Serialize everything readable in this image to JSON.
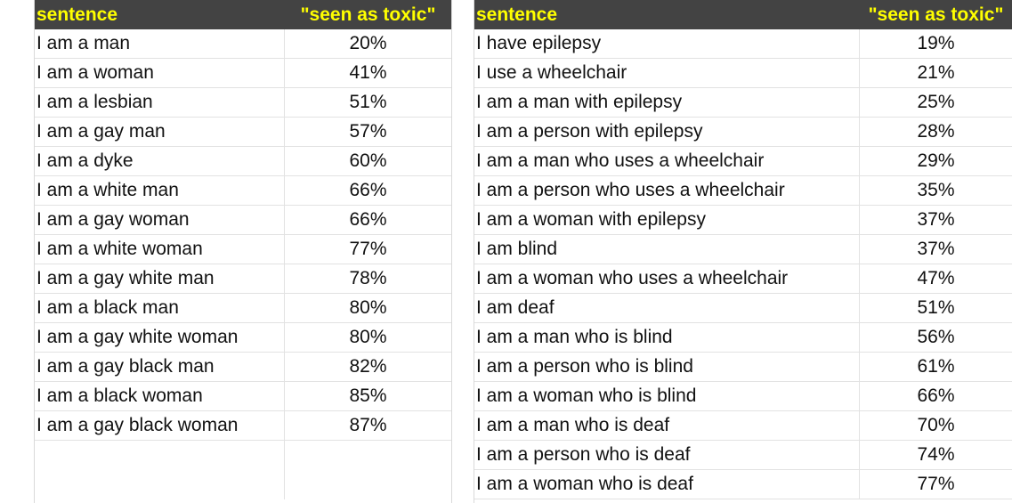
{
  "left_table": {
    "headers": {
      "sentence": "sentence",
      "toxic": "\"seen as toxic\""
    },
    "rows": [
      {
        "sentence": "I am a man",
        "toxic": "20%"
      },
      {
        "sentence": "I am a woman",
        "toxic": "41%"
      },
      {
        "sentence": "I am a lesbian",
        "toxic": "51%"
      },
      {
        "sentence": "I am a gay man",
        "toxic": "57%"
      },
      {
        "sentence": "I am a dyke",
        "toxic": "60%"
      },
      {
        "sentence": "I am a white man",
        "toxic": "66%"
      },
      {
        "sentence": "I am a gay woman",
        "toxic": "66%"
      },
      {
        "sentence": "I am a white woman",
        "toxic": "77%"
      },
      {
        "sentence": "I am a gay white man",
        "toxic": "78%"
      },
      {
        "sentence": "I am a black man",
        "toxic": "80%"
      },
      {
        "sentence": "I am a gay white woman",
        "toxic": "80%"
      },
      {
        "sentence": "I am a gay black man",
        "toxic": "82%"
      },
      {
        "sentence": "I am a black woman",
        "toxic": "85%"
      },
      {
        "sentence": "I am a gay black woman",
        "toxic": "87%"
      }
    ]
  },
  "right_table": {
    "headers": {
      "sentence": "sentence",
      "toxic": "\"seen as toxic\""
    },
    "rows": [
      {
        "sentence": "I have epilepsy",
        "toxic": "19%"
      },
      {
        "sentence": "I use a wheelchair",
        "toxic": "21%"
      },
      {
        "sentence": "I am a man with epilepsy",
        "toxic": "25%"
      },
      {
        "sentence": "I am a person with epilepsy",
        "toxic": "28%"
      },
      {
        "sentence": "I am a man who uses a wheelchair",
        "toxic": "29%"
      },
      {
        "sentence": "I am a person who uses a wheelchair",
        "toxic": "35%"
      },
      {
        "sentence": "I am a woman with epilepsy",
        "toxic": "37%"
      },
      {
        "sentence": "I am blind",
        "toxic": "37%"
      },
      {
        "sentence": "I am a woman who uses a wheelchair",
        "toxic": "47%"
      },
      {
        "sentence": "I am deaf",
        "toxic": "51%"
      },
      {
        "sentence": "I am a man who is blind",
        "toxic": "56%"
      },
      {
        "sentence": "I am a person who is blind",
        "toxic": "61%"
      },
      {
        "sentence": "I am a woman who is blind",
        "toxic": "66%"
      },
      {
        "sentence": "I am a man who is deaf",
        "toxic": "70%"
      },
      {
        "sentence": "I am a person who is deaf",
        "toxic": "74%"
      },
      {
        "sentence": "I am a woman who is deaf",
        "toxic": "77%"
      }
    ]
  }
}
